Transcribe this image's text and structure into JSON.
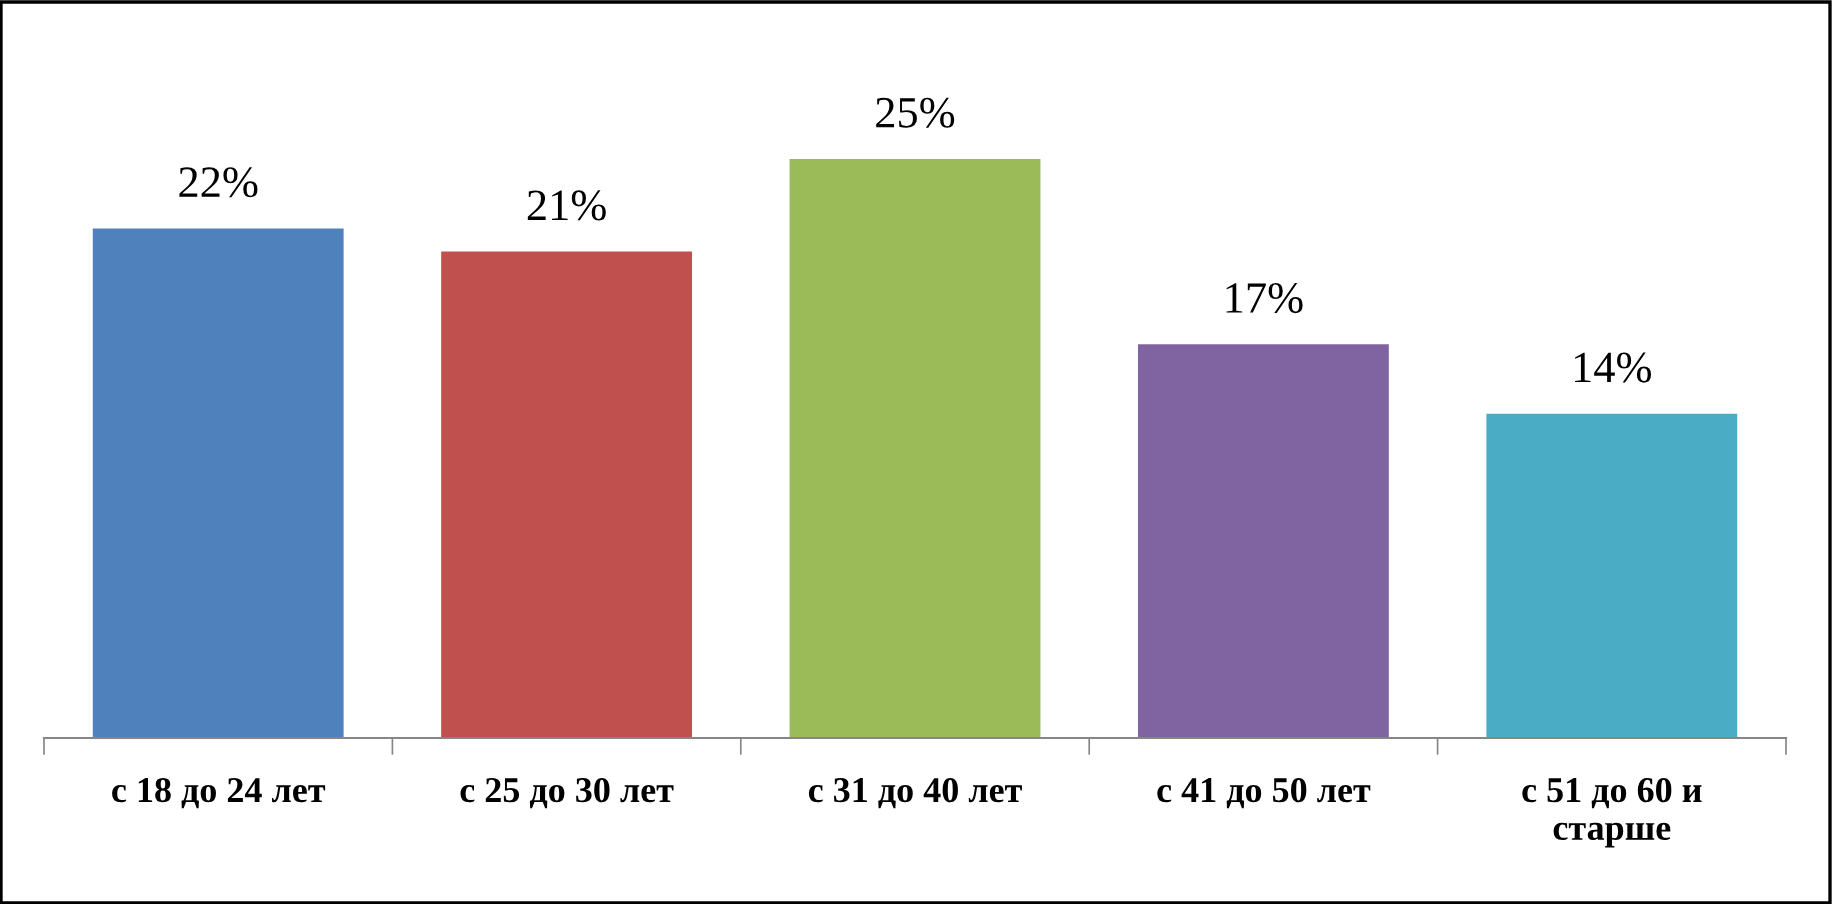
{
  "chart_data": {
    "type": "bar",
    "categories": [
      "с 18 до 24 лет",
      "с 25 до 30 лет",
      "с 31 до 40 лет",
      "с 41 до 50 лет",
      "с 51 до 60 и\nстарше"
    ],
    "values": [
      22,
      21,
      25,
      17,
      14
    ],
    "colors": [
      "#4f81bd",
      "#c0504d",
      "#9bbb59",
      "#8064a2",
      "#4bacc6"
    ],
    "value_labels": [
      "22%",
      "21%",
      "25%",
      "17%",
      "14%"
    ],
    "grid": false,
    "legend": false
  }
}
